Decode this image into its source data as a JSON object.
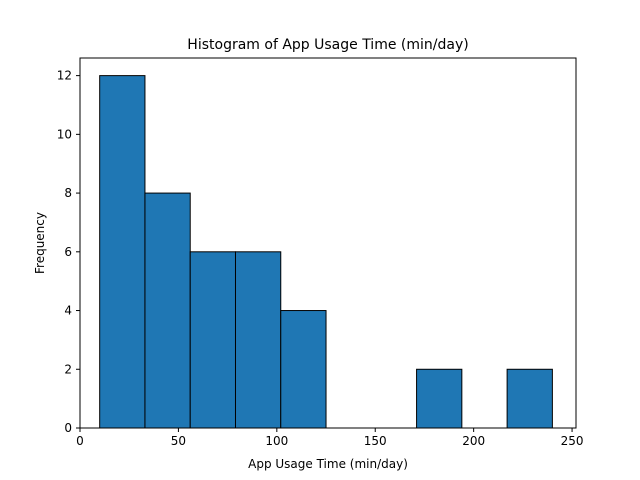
{
  "chart_data": {
    "type": "bar",
    "title": "Histogram of App Usage Time (min/day)",
    "xlabel": "App Usage Time (min/day)",
    "ylabel": "Frequency",
    "xlim": [
      0,
      252
    ],
    "ylim": [
      0,
      12.6
    ],
    "bin_edges": [
      10,
      33,
      56,
      79,
      102,
      125,
      148,
      171,
      194,
      217,
      240
    ],
    "counts": [
      12,
      8,
      6,
      6,
      4,
      0,
      0,
      2,
      0,
      2
    ],
    "xticks": [
      0,
      50,
      100,
      150,
      200,
      250
    ],
    "yticks": [
      0,
      2,
      4,
      6,
      8,
      10,
      12
    ],
    "grid": false,
    "bar_color": "#1f77b4",
    "edge_color": "#000000"
  }
}
